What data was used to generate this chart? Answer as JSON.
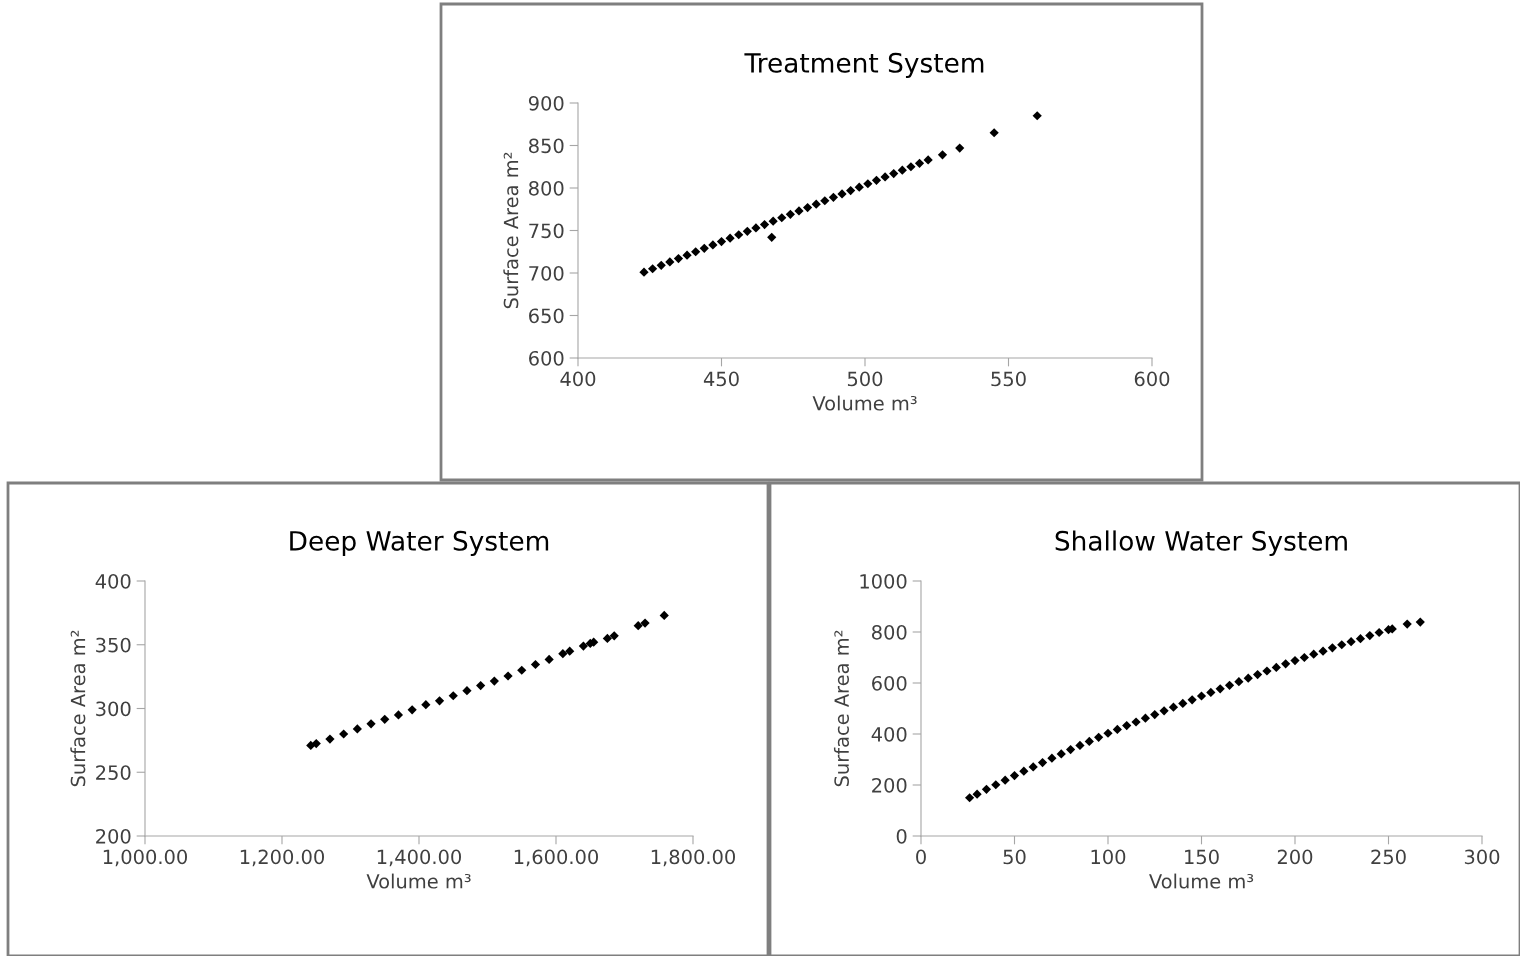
{
  "chart_data": [
    {
      "type": "scatter",
      "title": "Treatment System",
      "xlabel": "Volume m³",
      "ylabel": "Surface Area m²",
      "marker": "diamond",
      "grid": false,
      "legend": false,
      "xlim": [
        400,
        600
      ],
      "xticks": [
        400,
        450,
        500,
        550,
        600
      ],
      "ylim": [
        600,
        900
      ],
      "yticks": [
        600,
        650,
        700,
        750,
        800,
        850,
        900
      ],
      "series": [
        {
          "color": "#000000",
          "x": [
            423,
            426,
            429,
            432,
            435,
            438,
            441,
            444,
            447,
            450,
            453,
            456,
            459,
            462,
            465,
            468,
            471,
            474,
            477,
            480,
            483,
            486,
            489,
            492,
            495,
            498,
            501,
            504,
            507,
            510,
            513,
            516,
            519,
            522,
            527,
            533,
            545,
            560,
            467.5
          ],
          "values": [
            701,
            705,
            709,
            713,
            717,
            721,
            725,
            729,
            733,
            737,
            741,
            745,
            749,
            753,
            757,
            761,
            765,
            769,
            773,
            777,
            781,
            785,
            789,
            793,
            797,
            801,
            805,
            809,
            813,
            817,
            821,
            825,
            829,
            833,
            839,
            847,
            865,
            885,
            742
          ]
        }
      ]
    },
    {
      "type": "scatter",
      "title": "Deep Water System",
      "xlabel": "Volume m³",
      "ylabel": "Surface Area m²",
      "marker": "diamond",
      "grid": false,
      "legend": false,
      "xlim": [
        1000,
        1800
      ],
      "xticks": [
        {
          "value": 1000,
          "label": "1,000.00"
        },
        {
          "value": 1200,
          "label": "1,200.00"
        },
        {
          "value": 1400,
          "label": "1,400.00"
        },
        {
          "value": 1600,
          "label": "1,600.00"
        },
        {
          "value": 1800,
          "label": "1,800.00"
        }
      ],
      "ylim": [
        200,
        400
      ],
      "yticks": [
        200,
        250,
        300,
        350,
        400
      ],
      "series": [
        {
          "color": "#000000",
          "x": [
            1242,
            1250,
            1270,
            1290,
            1310,
            1330,
            1350,
            1370,
            1390,
            1410,
            1430,
            1450,
            1470,
            1490,
            1510,
            1530,
            1550,
            1570,
            1590,
            1610,
            1620,
            1640,
            1650,
            1655,
            1675,
            1685,
            1720,
            1730,
            1758
          ],
          "values": [
            271,
            272.5,
            276,
            280,
            284,
            288,
            291.5,
            295,
            299,
            303,
            306,
            310,
            314,
            318,
            321.5,
            325.5,
            330,
            334.5,
            338.5,
            343,
            345,
            349,
            351,
            352,
            355,
            357,
            365,
            367,
            373
          ]
        }
      ]
    },
    {
      "type": "scatter",
      "title": "Shallow Water System",
      "xlabel": "Volume m³",
      "ylabel": "Surface Area m²",
      "marker": "diamond",
      "grid": false,
      "legend": false,
      "xlim": [
        0,
        300
      ],
      "xticks": [
        0,
        50,
        100,
        150,
        200,
        250,
        300
      ],
      "ylim": [
        0,
        1000
      ],
      "yticks": [
        0,
        200,
        400,
        600,
        800,
        1000
      ],
      "series": [
        {
          "color": "#000000",
          "x": [
            26,
            30,
            35,
            40,
            45,
            50,
            55,
            60,
            65,
            70,
            75,
            80,
            85,
            90,
            95,
            100,
            105,
            110,
            115,
            120,
            125,
            130,
            135,
            140,
            145,
            150,
            155,
            160,
            165,
            170,
            175,
            180,
            185,
            190,
            195,
            200,
            205,
            210,
            215,
            220,
            225,
            230,
            235,
            240,
            245,
            250,
            252,
            260,
            267
          ],
          "values": [
            150,
            164,
            183,
            201,
            219,
            237,
            254,
            271,
            288,
            305,
            322,
            339,
            355,
            371,
            387,
            403,
            418,
            433,
            447,
            462,
            476,
            491,
            505,
            520,
            534,
            549,
            563,
            577,
            591,
            605,
            619,
            633,
            647,
            661,
            675,
            688,
            700,
            713,
            725,
            738,
            750,
            762,
            774,
            786,
            798,
            809,
            812,
            831,
            839
          ]
        }
      ]
    }
  ]
}
